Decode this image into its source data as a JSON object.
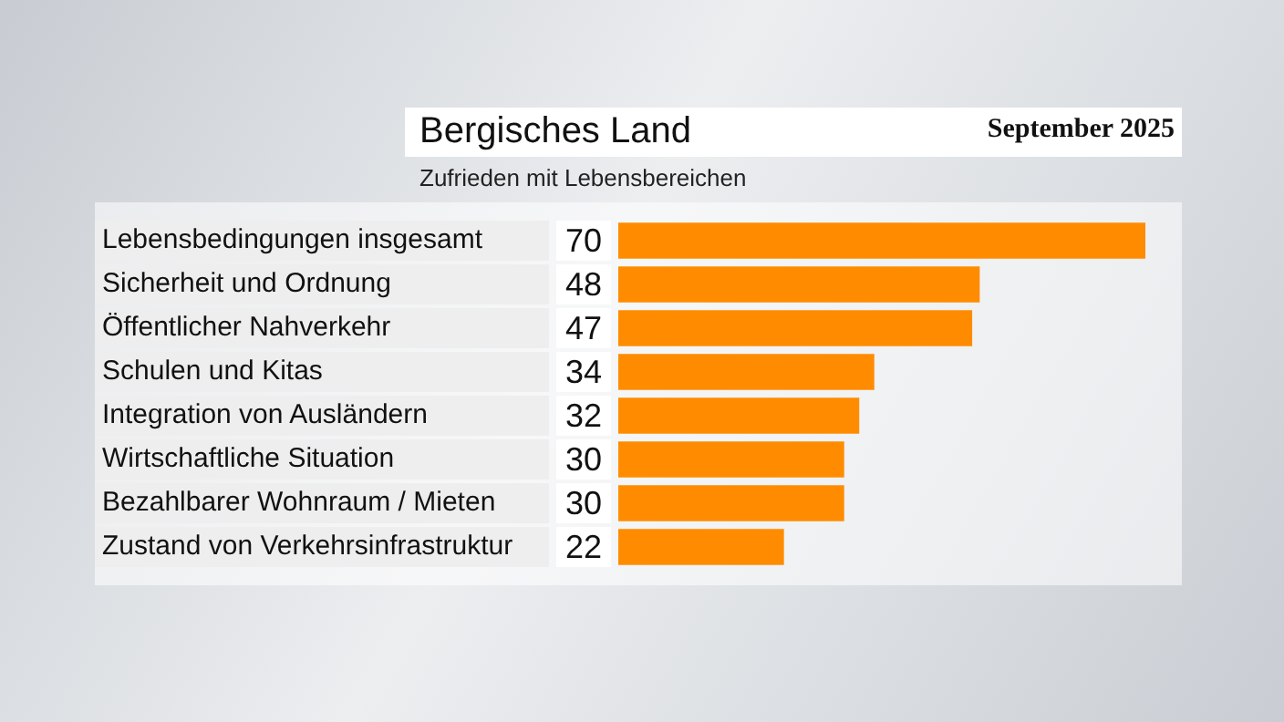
{
  "chart_data": {
    "type": "bar",
    "orientation": "horizontal",
    "title": "Bergisches Land",
    "subtitle": "Zufrieden mit Lebensbereichen",
    "annotations": [
      "September 2025"
    ],
    "categories": [
      "Lebensbedingungen insgesamt",
      "Sicherheit und Ordnung",
      "Öffentlicher Nahverkehr",
      "Schulen und Kitas",
      "Integration von Ausländern",
      "Wirtschaftliche Situation",
      "Bezahlbarer Wohnraum / Mieten",
      "Zustand von Verkehrsinfrastruktur"
    ],
    "values": [
      70,
      48,
      47,
      34,
      32,
      30,
      30,
      22
    ],
    "color": "#ff8c00",
    "data_labels": true,
    "legend": false,
    "tick_labels": "y"
  }
}
